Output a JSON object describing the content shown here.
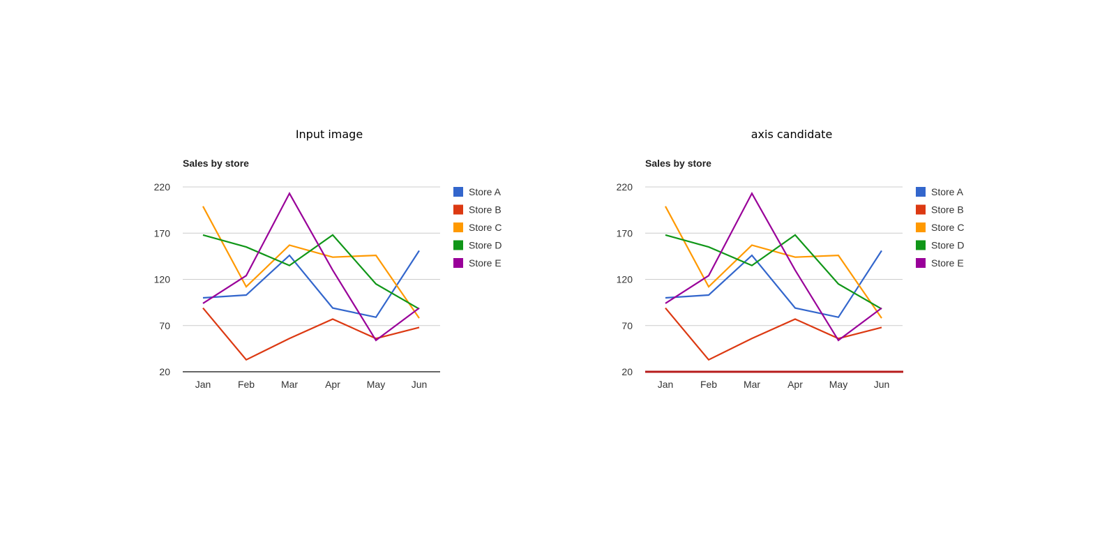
{
  "panels": [
    {
      "id": "input",
      "title": "Input image"
    },
    {
      "id": "candidate",
      "title": "axis candidate"
    }
  ],
  "highlight_color": "#b71c1c",
  "chart_data": [
    {
      "type": "line",
      "title": "Sales by store",
      "xlabel": "",
      "ylabel": "",
      "categories": [
        "Jan",
        "Feb",
        "Mar",
        "Apr",
        "May",
        "Jun"
      ],
      "yticks": [
        20,
        70,
        120,
        170,
        220
      ],
      "ylim": [
        20,
        220
      ],
      "grid": true,
      "legend": "right",
      "series": [
        {
          "name": "Store A",
          "color": "#3366cc",
          "values": [
            100,
            103,
            146,
            89,
            79,
            151
          ]
        },
        {
          "name": "Store B",
          "color": "#dc3912",
          "values": [
            89,
            33,
            56,
            77,
            56,
            68
          ]
        },
        {
          "name": "Store C",
          "color": "#ff9900",
          "values": [
            199,
            112,
            157,
            144,
            146,
            78
          ]
        },
        {
          "name": "Store D",
          "color": "#109618",
          "values": [
            168,
            155,
            135,
            168,
            115,
            88
          ]
        },
        {
          "name": "Store E",
          "color": "#990099",
          "values": [
            94,
            124,
            213,
            130,
            54,
            89
          ]
        }
      ]
    },
    {
      "type": "line",
      "title": "Sales by store",
      "xlabel": "",
      "ylabel": "",
      "categories": [
        "Jan",
        "Feb",
        "Mar",
        "Apr",
        "May",
        "Jun"
      ],
      "yticks": [
        20,
        70,
        120,
        170,
        220
      ],
      "ylim": [
        20,
        220
      ],
      "grid": true,
      "legend": "right",
      "highlight": "x-axis",
      "series": [
        {
          "name": "Store A",
          "color": "#3366cc",
          "values": [
            100,
            103,
            146,
            89,
            79,
            151
          ]
        },
        {
          "name": "Store B",
          "color": "#dc3912",
          "values": [
            89,
            33,
            56,
            77,
            56,
            68
          ]
        },
        {
          "name": "Store C",
          "color": "#ff9900",
          "values": [
            199,
            112,
            157,
            144,
            146,
            78
          ]
        },
        {
          "name": "Store D",
          "color": "#109618",
          "values": [
            168,
            155,
            135,
            168,
            115,
            88
          ]
        },
        {
          "name": "Store E",
          "color": "#990099",
          "values": [
            94,
            124,
            213,
            130,
            54,
            89
          ]
        }
      ]
    }
  ]
}
